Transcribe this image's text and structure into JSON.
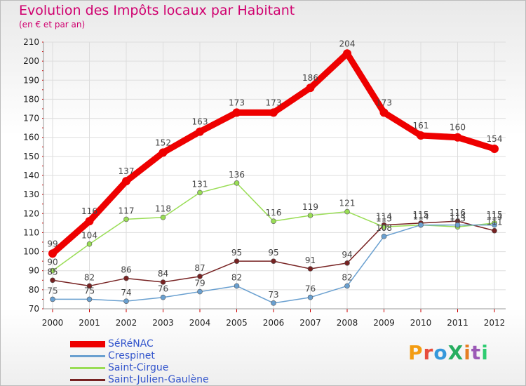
{
  "title": "Evolution des Impôts locaux par Habitant",
  "subtitle": "(en € et par an)",
  "logo": "ProXiti",
  "chart_data": {
    "type": "line",
    "x": [
      "2000",
      "2001",
      "2002",
      "2003",
      "2004",
      "2005",
      "2006",
      "2007",
      "2008",
      "2009",
      "2010",
      "2011",
      "2012"
    ],
    "ylim": [
      70,
      210
    ],
    "yticks": [
      70,
      80,
      90,
      100,
      110,
      120,
      130,
      140,
      150,
      160,
      170,
      180,
      190,
      200,
      210
    ],
    "grid": true,
    "legend_position": "bottom-left",
    "series": [
      {
        "name": "SéRéNAC",
        "color": "#ee0000",
        "values": [
          99,
          116,
          137,
          152,
          163,
          173,
          173,
          186,
          204,
          173,
          161,
          160,
          154
        ]
      },
      {
        "name": "Crespinet",
        "color": "#6aa0d0",
        "values": [
          75,
          75,
          74,
          76,
          79,
          82,
          73,
          76,
          82,
          108,
          114,
          114,
          114
        ]
      },
      {
        "name": "Saint-Cirgue",
        "color": "#99dd55",
        "values": [
          90,
          104,
          117,
          118,
          131,
          136,
          116,
          119,
          121,
          113,
          114,
          113,
          115
        ]
      },
      {
        "name": "Saint-Julien-Gaulène",
        "color": "#772222",
        "values": [
          85,
          82,
          86,
          84,
          87,
          95,
          95,
          91,
          94,
          114,
          115,
          116,
          111
        ]
      }
    ]
  }
}
